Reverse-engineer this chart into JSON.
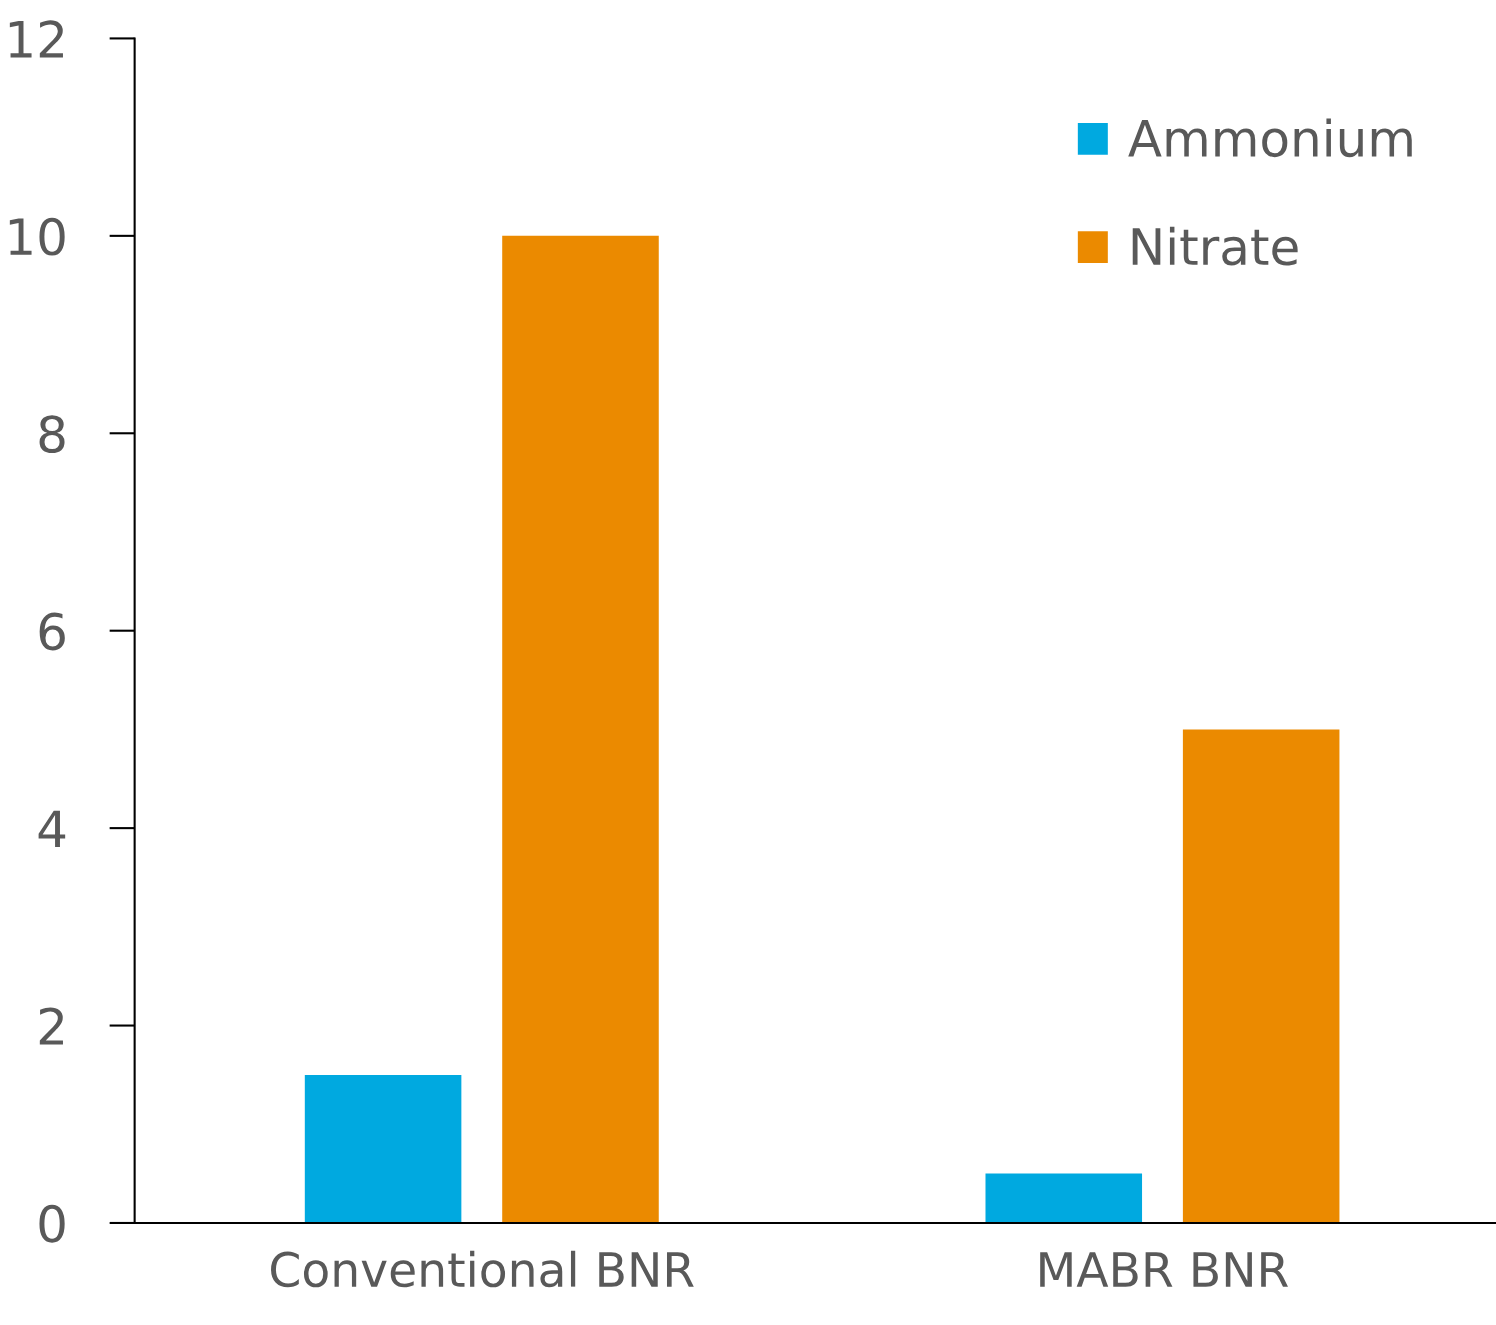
{
  "chart_data": {
    "type": "bar",
    "categories": [
      "Conventional BNR",
      "MABR BNR"
    ],
    "series": [
      {
        "name": "Ammonium",
        "color": "#00a9e0",
        "values": [
          1.5,
          0.5
        ]
      },
      {
        "name": "Nitrate",
        "color": "#eb8a00",
        "values": [
          10,
          5
        ]
      }
    ],
    "ylim": [
      0,
      12
    ],
    "yticks": [
      0,
      2,
      4,
      6,
      8,
      10,
      12
    ],
    "grid": false,
    "legend": "top right"
  }
}
